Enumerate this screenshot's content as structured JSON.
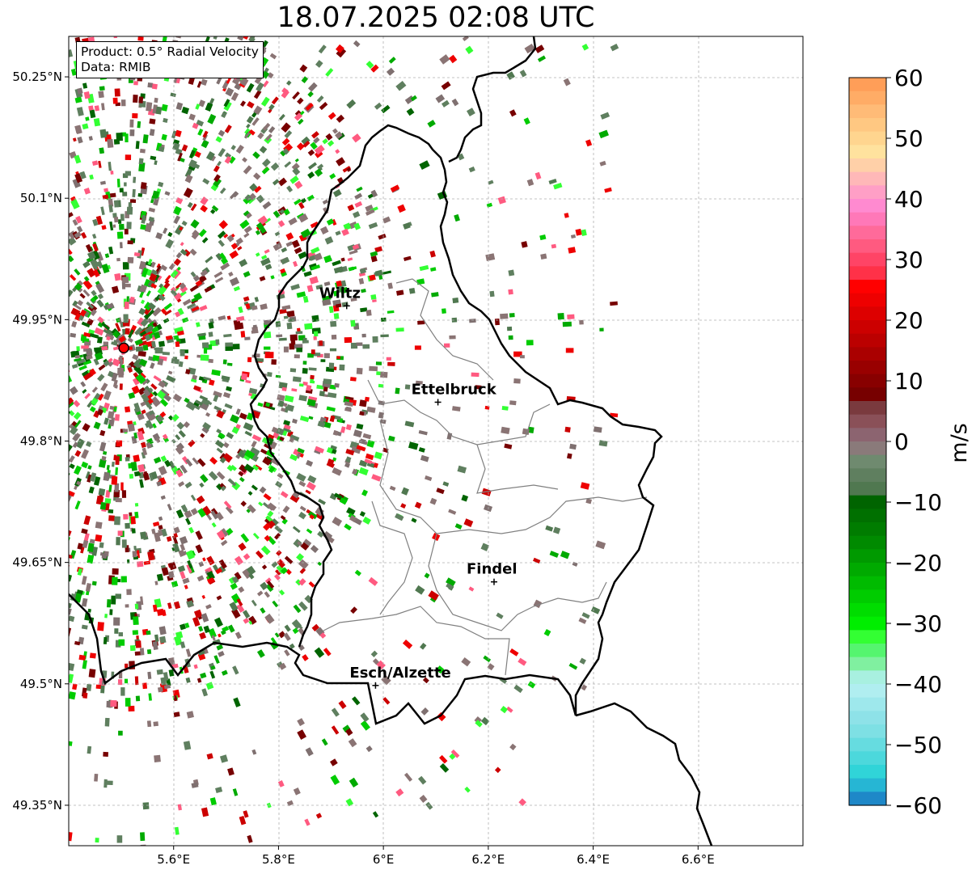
{
  "title": "18.07.2025 02:08 UTC",
  "info": {
    "product": "Product: 0.5° Radial Velocity",
    "source": "Data: RMIB"
  },
  "lon_ticks": [
    "5.6°E",
    "5.8°E",
    "6°E",
    "6.2°E",
    "6.4°E",
    "6.6°E"
  ],
  "lat_ticks": [
    "50.25°N",
    "50.1°N",
    "49.95°N",
    "49.8°N",
    "49.65°N",
    "49.5°N",
    "49.35°N"
  ],
  "cities": [
    {
      "name": "Wiltz",
      "lon": 5.93,
      "lat": 49.967
    },
    {
      "name": "Ettelbruck",
      "lon": 6.104,
      "lat": 49.848
    },
    {
      "name": "Findel",
      "lon": 6.211,
      "lat": 49.626
    },
    {
      "name": "Esch/Alzette",
      "lon": 5.985,
      "lat": 49.498
    }
  ],
  "radar_site": {
    "lon": 5.505,
    "lat": 49.915,
    "color": "#ff0000"
  },
  "colorbar": {
    "label": "m/s",
    "min": -60,
    "max": 60,
    "ticks": [
      "60",
      "50",
      "40",
      "30",
      "20",
      "10",
      "0",
      "−10",
      "−20",
      "−30",
      "−40",
      "−50",
      "−60"
    ],
    "colors_top_to_bottom": [
      "#ff9e58",
      "#ffac66",
      "#ffbb77",
      "#ffc882",
      "#ffd58f",
      "#ffe29e",
      "#ffd0a8",
      "#ffb8b8",
      "#ff9fc6",
      "#ff8ad0",
      "#ff78b8",
      "#ff6a9a",
      "#ff5a80",
      "#ff4466",
      "#ff3148",
      "#ff0000",
      "#ee0000",
      "#dd0000",
      "#cc0000",
      "#bb0000",
      "#aa0000",
      "#990000",
      "#880000",
      "#770000",
      "#7a3a3e",
      "#8a5058",
      "#8c6470",
      "#8a7a7a",
      "#6f8a6f",
      "#5f7f5f",
      "#507850",
      "#006400",
      "#007000",
      "#007c00",
      "#008a00",
      "#009a00",
      "#00aa00",
      "#00bb00",
      "#00cc00",
      "#00dd00",
      "#00ee00",
      "#33ff33",
      "#55f56f",
      "#80f0a0",
      "#a8f0e0",
      "#b0eef0",
      "#9ee8ec",
      "#8ee2e8",
      "#7ee0e4",
      "#66dce0",
      "#4cd8dc",
      "#30d4d8",
      "#26b6d4",
      "#1e88c8"
    ]
  }
}
